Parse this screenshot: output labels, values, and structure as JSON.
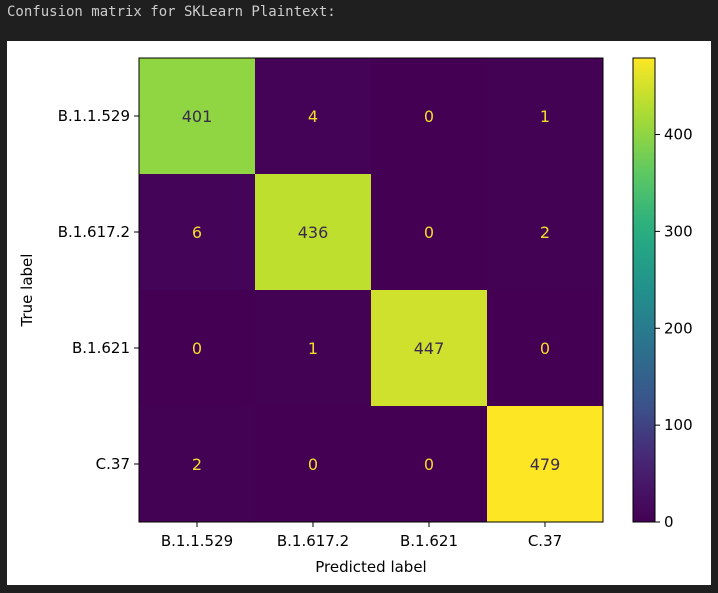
{
  "output": {
    "text": "Confusion matrix for SKLearn Plaintext:"
  },
  "chart_data": {
    "type": "heatmap",
    "title": "",
    "xlabel": "Predicted label",
    "ylabel": "True label",
    "x_categories": [
      "B.1.1.529",
      "B.1.617.2",
      "B.1.621",
      "C.37"
    ],
    "y_categories": [
      "B.1.1.529",
      "B.1.617.2",
      "B.1.621",
      "C.37"
    ],
    "values": [
      [
        401,
        4,
        0,
        1
      ],
      [
        6,
        436,
        0,
        2
      ],
      [
        0,
        1,
        447,
        0
      ],
      [
        2,
        0,
        0,
        479
      ]
    ],
    "colorbar": {
      "min": 0,
      "max": 479,
      "ticks": [
        0,
        100,
        200,
        300,
        400
      ]
    },
    "colormap": "viridis",
    "grid": false
  }
}
